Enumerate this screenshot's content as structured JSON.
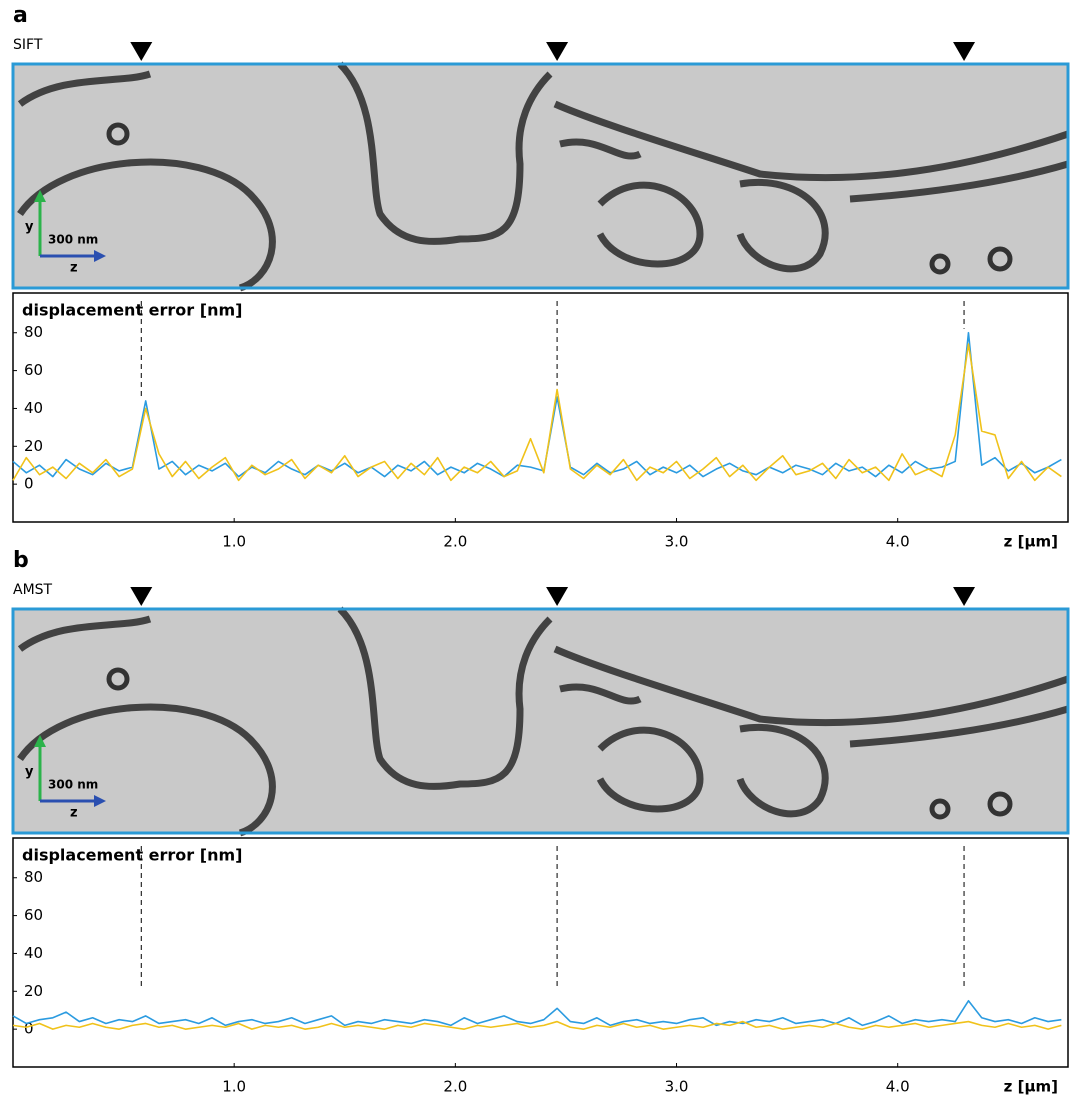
{
  "chart_data": [
    {
      "type": "line",
      "panel": "a",
      "subtitle": "SIFT",
      "ylabel": "displacement error [nm]",
      "xlabel": "z [µm]",
      "image_labels": {
        "y_axis": "y",
        "scale": "300 nm",
        "z_axis": "z"
      },
      "xlim": [
        0,
        4.77
      ],
      "ylim": [
        -20,
        101
      ],
      "xticks": [
        {
          "value": 1,
          "label": "1.0"
        },
        {
          "value": 2,
          "label": "2.0"
        },
        {
          "value": 3,
          "label": "3.0"
        },
        {
          "value": 4,
          "label": "4.0"
        }
      ],
      "yticks": [
        0,
        20,
        40,
        60,
        80
      ],
      "markers": [
        0.58,
        2.46,
        4.3
      ],
      "x": [
        0,
        0.06,
        0.12,
        0.18,
        0.24,
        0.3,
        0.36,
        0.42,
        0.48,
        0.54,
        0.6,
        0.66,
        0.72,
        0.78,
        0.84,
        0.9,
        0.96,
        1.02,
        1.08,
        1.14,
        1.2,
        1.26,
        1.32,
        1.38,
        1.44,
        1.5,
        1.56,
        1.62,
        1.68,
        1.74,
        1.8,
        1.86,
        1.92,
        1.98,
        2.04,
        2.1,
        2.16,
        2.22,
        2.28,
        2.34,
        2.4,
        2.46,
        2.52,
        2.58,
        2.64,
        2.7,
        2.76,
        2.82,
        2.88,
        2.94,
        3,
        3.06,
        3.12,
        3.18,
        3.24,
        3.3,
        3.36,
        3.42,
        3.48,
        3.54,
        3.6,
        3.66,
        3.72,
        3.78,
        3.84,
        3.9,
        3.96,
        4.02,
        4.08,
        4.14,
        4.2,
        4.26,
        4.32,
        4.38,
        4.44,
        4.5,
        4.56,
        4.62,
        4.68,
        4.74
      ],
      "series": [
        {
          "color": "#2b9be0",
          "values": [
            12,
            6,
            10,
            4,
            13,
            8,
            5,
            11,
            7,
            9,
            44,
            8,
            12,
            5,
            10,
            7,
            11,
            4,
            9,
            6,
            12,
            8,
            5,
            10,
            7,
            11,
            6,
            9,
            4,
            10,
            7,
            12,
            5,
            9,
            6,
            11,
            8,
            4,
            10,
            9,
            7,
            46,
            9,
            5,
            11,
            6,
            8,
            12,
            5,
            9,
            6,
            10,
            4,
            8,
            11,
            7,
            5,
            9,
            6,
            10,
            8,
            5,
            11,
            7,
            9,
            4,
            10,
            6,
            12,
            8,
            9,
            12,
            80,
            10,
            14,
            7,
            11,
            6,
            9,
            13
          ]
        },
        {
          "color": "#f0c21a",
          "values": [
            2,
            14,
            5,
            9,
            3,
            11,
            6,
            13,
            4,
            8,
            40,
            16,
            4,
            12,
            3,
            9,
            14,
            2,
            10,
            5,
            8,
            13,
            3,
            10,
            6,
            15,
            4,
            9,
            12,
            3,
            11,
            5,
            14,
            2,
            9,
            6,
            12,
            4,
            7,
            24,
            6,
            50,
            8,
            3,
            10,
            5,
            13,
            2,
            9,
            6,
            12,
            3,
            8,
            14,
            4,
            10,
            2,
            9,
            15,
            5,
            7,
            11,
            3,
            13,
            6,
            9,
            2,
            16,
            5,
            8,
            4,
            26,
            74,
            28,
            26,
            3,
            12,
            2,
            9,
            4
          ]
        }
      ]
    },
    {
      "type": "line",
      "panel": "b",
      "subtitle": "AMST",
      "ylabel": "displacement error [nm]",
      "xlabel": "z [µm]",
      "image_labels": {
        "y_axis": "y",
        "scale": "300 nm",
        "z_axis": "z"
      },
      "xlim": [
        0,
        4.77
      ],
      "ylim": [
        -20,
        101
      ],
      "xticks": [
        {
          "value": 1,
          "label": "1.0"
        },
        {
          "value": 2,
          "label": "2.0"
        },
        {
          "value": 3,
          "label": "3.0"
        },
        {
          "value": 4,
          "label": "4.0"
        }
      ],
      "yticks": [
        0,
        20,
        40,
        60,
        80
      ],
      "markers": [
        0.58,
        2.46,
        4.3
      ],
      "x": [
        0,
        0.06,
        0.12,
        0.18,
        0.24,
        0.3,
        0.36,
        0.42,
        0.48,
        0.54,
        0.6,
        0.66,
        0.72,
        0.78,
        0.84,
        0.9,
        0.96,
        1.02,
        1.08,
        1.14,
        1.2,
        1.26,
        1.32,
        1.38,
        1.44,
        1.5,
        1.56,
        1.62,
        1.68,
        1.74,
        1.8,
        1.86,
        1.92,
        1.98,
        2.04,
        2.1,
        2.16,
        2.22,
        2.28,
        2.34,
        2.4,
        2.46,
        2.52,
        2.58,
        2.64,
        2.7,
        2.76,
        2.82,
        2.88,
        2.94,
        3,
        3.06,
        3.12,
        3.18,
        3.24,
        3.3,
        3.36,
        3.42,
        3.48,
        3.54,
        3.6,
        3.66,
        3.72,
        3.78,
        3.84,
        3.9,
        3.96,
        4.02,
        4.08,
        4.14,
        4.2,
        4.26,
        4.32,
        4.38,
        4.44,
        4.5,
        4.56,
        4.62,
        4.68,
        4.74
      ],
      "series": [
        {
          "color": "#2b9be0",
          "values": [
            7,
            3,
            5,
            6,
            9,
            4,
            6,
            3,
            5,
            4,
            7,
            3,
            4,
            5,
            3,
            6,
            2,
            4,
            5,
            3,
            4,
            6,
            3,
            5,
            7,
            2,
            4,
            3,
            5,
            4,
            3,
            5,
            4,
            2,
            6,
            3,
            5,
            7,
            4,
            3,
            5,
            11,
            4,
            3,
            6,
            2,
            4,
            5,
            3,
            4,
            3,
            5,
            6,
            2,
            4,
            3,
            5,
            4,
            6,
            3,
            4,
            5,
            3,
            6,
            2,
            4,
            7,
            3,
            5,
            4,
            5,
            4,
            15,
            6,
            4,
            5,
            3,
            6,
            4,
            5
          ]
        },
        {
          "color": "#f0c21a",
          "values": [
            2,
            1,
            3,
            0,
            2,
            1,
            3,
            1,
            0,
            2,
            3,
            1,
            2,
            0,
            1,
            2,
            1,
            3,
            0,
            2,
            1,
            2,
            0,
            1,
            3,
            1,
            2,
            1,
            0,
            2,
            1,
            3,
            2,
            1,
            0,
            2,
            1,
            2,
            3,
            1,
            2,
            4,
            1,
            0,
            2,
            1,
            3,
            1,
            2,
            0,
            1,
            2,
            1,
            3,
            2,
            4,
            1,
            2,
            0,
            1,
            2,
            1,
            3,
            1,
            0,
            2,
            1,
            2,
            3,
            1,
            2,
            3,
            4,
            2,
            1,
            3,
            1,
            2,
            0,
            2
          ]
        }
      ]
    }
  ]
}
